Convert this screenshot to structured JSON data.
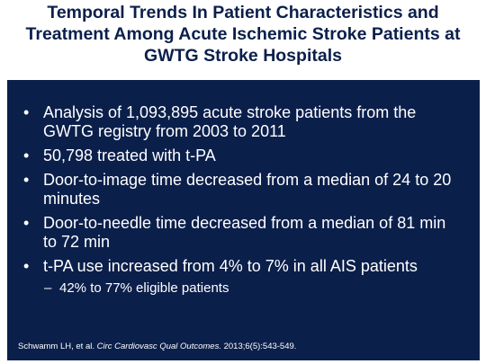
{
  "title": {
    "line1": "Temporal Trends In Patient Characteristics and",
    "line2": "Treatment Among Acute Ischemic Stroke Patients at",
    "line3": "GWTG Stroke Hospitals"
  },
  "bullets": [
    {
      "text": "Analysis of 1,093,895 acute stroke patients from the GWTG registry from 2003 to 2011"
    },
    {
      "text": "50,798 treated with t-PA"
    },
    {
      "text": "Door-to-image time decreased from a median of 24 to 20 minutes"
    },
    {
      "text": "Door-to-needle time decreased from a median of 81 min to 72 min"
    },
    {
      "text": "t-PA use increased from 4% to 7% in all AIS patients"
    }
  ],
  "sub_bullets": [
    {
      "text": "42% to 77% eligible patients"
    }
  ],
  "bullet_glyph": "•",
  "sub_bullet_glyph": "–",
  "citation": {
    "authors": "Schwamm LH, et al. ",
    "journal": "Circ Cardiovasc Qual Outcomes.",
    "details": " 2013;6(5):543-549."
  },
  "colors": {
    "panel_background": "#0b1f4b",
    "title_text": "#0b1f4b",
    "body_text": "#ffffff"
  }
}
